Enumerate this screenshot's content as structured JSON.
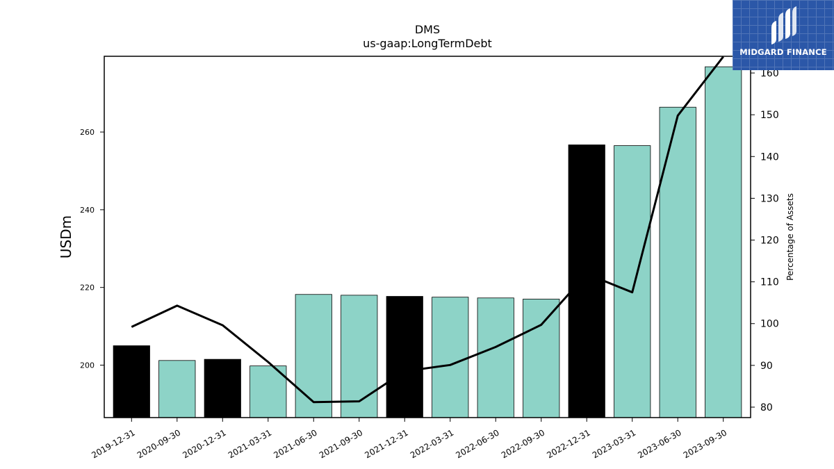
{
  "brand": {
    "name": "MIDGARD FINANCE",
    "bg_color": "#2b57a8"
  },
  "chart_data": {
    "type": "bar",
    "title": "DMS",
    "subtitle": "us-gaap:LongTermDebt",
    "ylabel": "USDm",
    "y2label": "Percentage of Assets",
    "categories": [
      "2019-12-31",
      "2020-09-30",
      "2020-12-31",
      "2021-03-31",
      "2021-06-30",
      "2021-09-30",
      "2021-12-31",
      "2022-03-31",
      "2022-06-30",
      "2022-09-30",
      "2022-12-31",
      "2023-03-31",
      "2023-06-30",
      "2023-09-30"
    ],
    "series": [
      {
        "axis": "left",
        "kind": "bar",
        "values": [
          205.0,
          201.2,
          201.5,
          199.8,
          218.2,
          218.0,
          217.7,
          217.5,
          217.3,
          217.0,
          256.7,
          256.5,
          266.4,
          276.8
        ],
        "colors": [
          "#000000",
          "#8dd3c7",
          "#000000",
          "#8dd3c7",
          "#8dd3c7",
          "#8dd3c7",
          "#000000",
          "#8dd3c7",
          "#8dd3c7",
          "#8dd3c7",
          "#000000",
          "#8dd3c7",
          "#8dd3c7",
          "#8dd3c7"
        ]
      },
      {
        "axis": "right",
        "kind": "line",
        "color": "#000000",
        "values": [
          99.2,
          104.3,
          99.6,
          90.8,
          81.2,
          81.4,
          88.6,
          90.1,
          94.4,
          99.7,
          111.9,
          107.5,
          149.8,
          163.9
        ]
      }
    ],
    "ylim": [
      186.5,
      279.5
    ],
    "y2lim": [
      77.5,
      164.0
    ],
    "yticks": [
      200,
      220,
      240,
      260
    ],
    "y2ticks": [
      80,
      90,
      100,
      110,
      120,
      130,
      140,
      150,
      160
    ],
    "grid": false
  }
}
